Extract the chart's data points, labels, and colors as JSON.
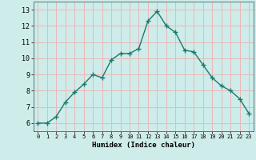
{
  "x": [
    0,
    1,
    2,
    3,
    4,
    5,
    6,
    7,
    8,
    9,
    10,
    11,
    12,
    13,
    14,
    15,
    16,
    17,
    18,
    19,
    20,
    21,
    22,
    23
  ],
  "y": [
    6.0,
    6.0,
    6.4,
    7.3,
    7.9,
    8.4,
    9.0,
    8.8,
    9.9,
    10.3,
    10.3,
    10.6,
    12.3,
    12.9,
    12.0,
    11.6,
    10.5,
    10.4,
    9.6,
    8.8,
    8.3,
    8.0,
    7.5,
    6.6
  ],
  "line_color": "#1a7a6e",
  "marker": "+",
  "marker_size": 4,
  "xlabel": "Humidex (Indice chaleur)",
  "xlim": [
    -0.5,
    23.5
  ],
  "ylim": [
    5.5,
    13.5
  ],
  "yticks": [
    6,
    7,
    8,
    9,
    10,
    11,
    12,
    13
  ],
  "xticks": [
    0,
    1,
    2,
    3,
    4,
    5,
    6,
    7,
    8,
    9,
    10,
    11,
    12,
    13,
    14,
    15,
    16,
    17,
    18,
    19,
    20,
    21,
    22,
    23
  ],
  "xtick_labels": [
    "0",
    "1",
    "2",
    "3",
    "4",
    "5",
    "6",
    "7",
    "8",
    "9",
    "10",
    "11",
    "12",
    "13",
    "14",
    "15",
    "16",
    "17",
    "18",
    "19",
    "20",
    "21",
    "22",
    "23"
  ],
  "bg_color": "#ceecea",
  "grid_color": "#e8b8b8",
  "linewidth": 1.0,
  "xlabel_fontsize": 6.5,
  "tick_fontsize_x": 5.0,
  "tick_fontsize_y": 6.0
}
